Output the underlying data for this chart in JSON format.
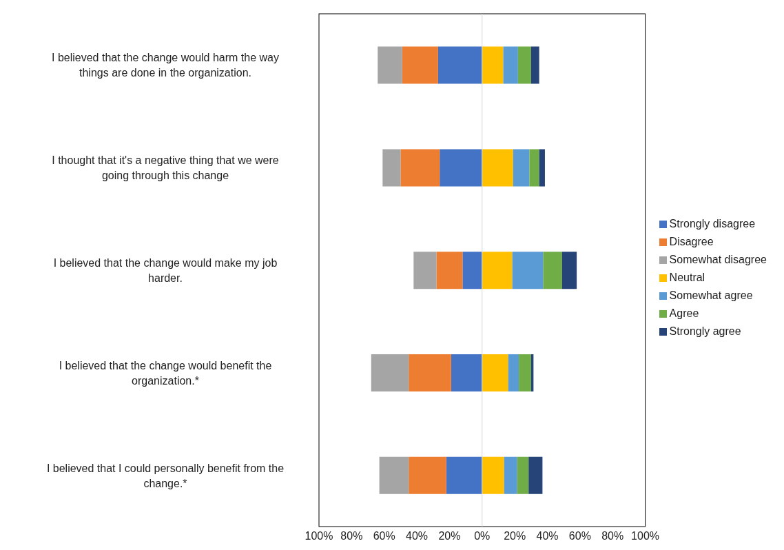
{
  "chart_data": {
    "type": "bar",
    "orientation": "horizontal",
    "stacked": true,
    "categories": [
      "I believed that the change would harm the way things are done in the organization.",
      "I thought that it's a negative thing that we were going through this change",
      "I believed that the change would make my job harder.",
      "I believed that the change would benefit the organization.*",
      "I believed that I could personally benefit from the change.*"
    ],
    "series": [
      {
        "name": "Strongly disagree",
        "color": "#4472c4",
        "values": [
          -27,
          -26,
          -12,
          -19,
          -22
        ]
      },
      {
        "name": "Disagree",
        "color": "#ed7d31",
        "values": [
          -22,
          -24,
          -16,
          -26,
          -23
        ]
      },
      {
        "name": "Somewhat disagree",
        "color": "#a5a5a5",
        "values": [
          -15,
          -11,
          -14,
          -23,
          -18
        ]
      },
      {
        "name": "Neutral",
        "color": "#ffc000",
        "values": [
          13,
          19,
          18.5,
          16,
          13.5
        ]
      },
      {
        "name": "Somewhat agree",
        "color": "#5b9bd5",
        "values": [
          9,
          10,
          19,
          6.5,
          8
        ]
      },
      {
        "name": "Agree",
        "color": "#70ad47",
        "values": [
          8,
          6,
          11.5,
          7.5,
          7
        ]
      },
      {
        "name": "Strongly agree",
        "color": "#264478",
        "values": [
          5,
          3.5,
          9,
          1.5,
          8.5
        ]
      }
    ],
    "xlim": [
      -100,
      100
    ],
    "xticks": [
      {
        "value": -100,
        "label": "100%"
      },
      {
        "value": -80,
        "label": "80%"
      },
      {
        "value": -60,
        "label": "60%"
      },
      {
        "value": -40,
        "label": "40%"
      },
      {
        "value": -20,
        "label": "20%"
      },
      {
        "value": 0,
        "label": "0%"
      },
      {
        "value": 20,
        "label": "20%"
      },
      {
        "value": 40,
        "label": "40%"
      },
      {
        "value": 60,
        "label": "60%"
      },
      {
        "value": 80,
        "label": "80%"
      },
      {
        "value": 100,
        "label": "100%"
      }
    ],
    "ref_lines": [
      {
        "axis": "x",
        "value": 0,
        "color": "#d9d9d9"
      }
    ],
    "legend": "right",
    "grid": false
  }
}
